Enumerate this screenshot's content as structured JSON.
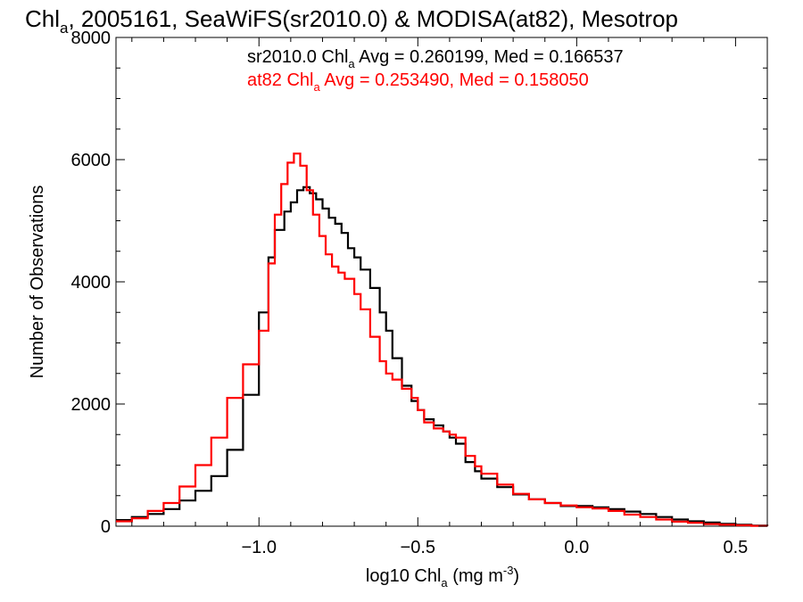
{
  "title": {
    "pre": "Chl",
    "sub": "a",
    "post": ", 2005161, SeaWiFS(sr2010.0) & MODISA(at82), Mesotrop"
  },
  "annotations": [
    {
      "pre": "sr2010.0 Chl",
      "sub": "a",
      "post": " Avg = 0.260199, Med = 0.166537",
      "color": "#000000"
    },
    {
      "pre": "at82 Chl",
      "sub": "a",
      "post": " Avg = 0.253490, Med = 0.158050",
      "color": "#ff0000"
    }
  ],
  "xlabel": {
    "pre": "log10 Chl",
    "sub": "a",
    "mid": " (mg m",
    "sup": "-3",
    "post": ")"
  },
  "ylabel": "Number of Observations",
  "colors": {
    "series1": "#000000",
    "series2": "#ff0000",
    "axis": "#000000",
    "background": "#ffffff"
  },
  "chart_data": {
    "type": "line",
    "step": true,
    "xlim": [
      -1.45,
      0.6
    ],
    "ylim": [
      0,
      8000
    ],
    "x_ticks": [
      -1.0,
      -0.5,
      0.0,
      0.5
    ],
    "x_tick_labels": [
      "−1.0",
      "−0.5",
      "0.0",
      "0.5"
    ],
    "y_ticks": [
      0,
      2000,
      4000,
      6000,
      8000
    ],
    "y_tick_labels": [
      "0",
      "2000",
      "4000",
      "6000",
      "8000"
    ],
    "series": [
      {
        "name": "sr2010.0",
        "color": "#000000",
        "x": [
          -1.45,
          -1.4,
          -1.35,
          -1.3,
          -1.25,
          -1.2,
          -1.15,
          -1.1,
          -1.05,
          -1.0,
          -0.97,
          -0.95,
          -0.92,
          -0.9,
          -0.88,
          -0.86,
          -0.84,
          -0.82,
          -0.8,
          -0.78,
          -0.76,
          -0.74,
          -0.72,
          -0.7,
          -0.68,
          -0.65,
          -0.62,
          -0.6,
          -0.58,
          -0.55,
          -0.52,
          -0.5,
          -0.48,
          -0.45,
          -0.42,
          -0.4,
          -0.38,
          -0.35,
          -0.32,
          -0.3,
          -0.25,
          -0.2,
          -0.15,
          -0.1,
          -0.05,
          0.0,
          0.05,
          0.1,
          0.15,
          0.2,
          0.25,
          0.3,
          0.35,
          0.4,
          0.45,
          0.5,
          0.55,
          0.6
        ],
        "y": [
          100,
          150,
          200,
          280,
          420,
          580,
          820,
          1250,
          2150,
          3500,
          4400,
          4850,
          5150,
          5300,
          5500,
          5550,
          5450,
          5350,
          5200,
          5050,
          4950,
          4800,
          4550,
          4400,
          4200,
          3900,
          3500,
          3200,
          2750,
          2300,
          2050,
          1900,
          1750,
          1650,
          1550,
          1450,
          1350,
          1050,
          900,
          780,
          640,
          520,
          440,
          380,
          330,
          330,
          310,
          280,
          240,
          200,
          150,
          110,
          80,
          60,
          40,
          25,
          10,
          5
        ]
      },
      {
        "name": "at82",
        "color": "#ff0000",
        "x": [
          -1.45,
          -1.4,
          -1.35,
          -1.3,
          -1.25,
          -1.2,
          -1.15,
          -1.1,
          -1.05,
          -1.0,
          -0.97,
          -0.95,
          -0.93,
          -0.91,
          -0.89,
          -0.87,
          -0.85,
          -0.83,
          -0.81,
          -0.79,
          -0.77,
          -0.75,
          -0.73,
          -0.7,
          -0.68,
          -0.65,
          -0.62,
          -0.6,
          -0.58,
          -0.55,
          -0.52,
          -0.5,
          -0.48,
          -0.45,
          -0.42,
          -0.4,
          -0.38,
          -0.35,
          -0.32,
          -0.3,
          -0.25,
          -0.2,
          -0.15,
          -0.1,
          -0.05,
          0.0,
          0.05,
          0.1,
          0.15,
          0.2,
          0.25,
          0.3,
          0.35,
          0.4,
          0.45,
          0.5,
          0.55,
          0.6
        ],
        "y": [
          80,
          130,
          250,
          380,
          650,
          1000,
          1450,
          2100,
          2650,
          3200,
          4300,
          5100,
          5600,
          5950,
          6100,
          5900,
          5500,
          5100,
          4750,
          4450,
          4250,
          4150,
          4050,
          3800,
          3550,
          3100,
          2700,
          2500,
          2400,
          2250,
          2100,
          1900,
          1700,
          1600,
          1550,
          1500,
          1450,
          1150,
          980,
          860,
          680,
          530,
          440,
          380,
          340,
          310,
          290,
          250,
          190,
          150,
          110,
          75,
          55,
          35,
          25,
          15,
          5,
          2
        ]
      }
    ]
  }
}
